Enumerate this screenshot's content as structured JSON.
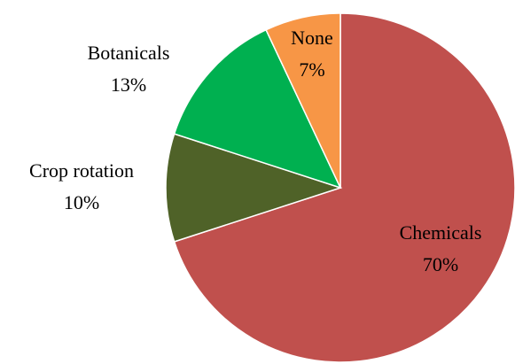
{
  "chart_data": {
    "type": "pie",
    "categories": [
      "Chemicals",
      "Crop rotation",
      "Botanicals",
      "None"
    ],
    "values": [
      70,
      10,
      13,
      7
    ],
    "value_labels": [
      "70%",
      "10%",
      "13%",
      "7%"
    ],
    "colors": [
      "#c0504d",
      "#4f6228",
      "#00b050",
      "#f79646"
    ]
  }
}
